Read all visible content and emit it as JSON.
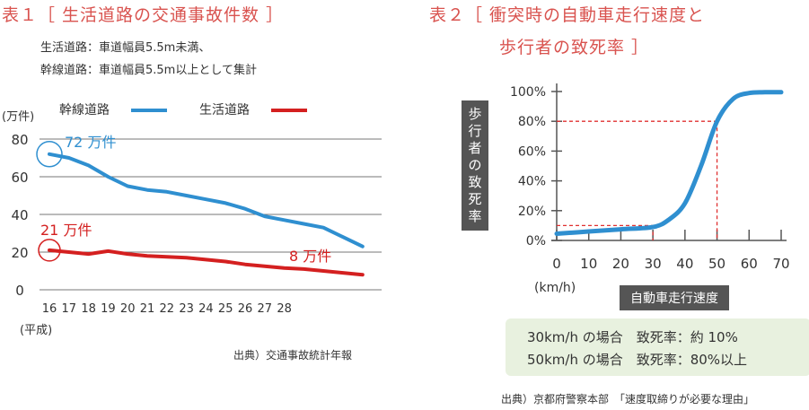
{
  "left": {
    "title": "表１［ 生活道路の交通事故件数 ］",
    "note1": "生活道路：車道幅員5.5m未満、",
    "note2": "幹線道路：車道幅員5.5m以上として集計",
    "unit": "(万件)",
    "era": "(平成)",
    "source": "出典）交通事故統計年報",
    "annotations": {
      "start_main": "72 万件",
      "start_life": "21 万件",
      "end_life": "8 万件"
    }
  },
  "right": {
    "title_line1": "表２［ 衝突時の自動車走行速度と",
    "title_line2": "歩行者の致死率 ］",
    "ylabel": "歩行者の致死率",
    "xunit": "(km/h)",
    "xlabel": "自動車走行速度",
    "summary": [
      "30km/h の場合　致死率：約 10%",
      "50km/h の場合　致死率：80%以上"
    ],
    "source": "出典）京都府警察本部　「速度取締りが必要な理由」"
  },
  "colors": {
    "blue": "#2f8fd0",
    "red": "#d42020",
    "title": "#d9534f",
    "dashed": "#e03030"
  },
  "chart_data": [
    {
      "type": "line",
      "title": "表１［ 生活道路の交通事故件数 ］",
      "xlabel": "(平成)",
      "ylabel": "(万件)",
      "ylim": [
        0,
        80
      ],
      "yticks": [
        "0",
        "20",
        "40",
        "60",
        "80"
      ],
      "xticks": [
        "16",
        "17",
        "18",
        "19",
        "20",
        "21",
        "22",
        "23",
        "24",
        "25",
        "26",
        "27",
        "28"
      ],
      "x": [
        16,
        17,
        18,
        19,
        20,
        21,
        22,
        23,
        24,
        25,
        26,
        27,
        28,
        29,
        30,
        31,
        32
      ],
      "legend": "top",
      "grid": true,
      "series": [
        {
          "name": "幹線道路",
          "color": "#2f8fd0",
          "values": [
            72,
            70,
            66,
            60,
            55,
            53,
            52,
            50,
            48,
            46,
            43,
            39,
            37,
            35,
            33,
            28,
            23
          ]
        },
        {
          "name": "生活道路",
          "color": "#d42020",
          "values": [
            21,
            20,
            19,
            20.5,
            19,
            18,
            17.5,
            17,
            16,
            15,
            13.5,
            12.5,
            11.5,
            11,
            10,
            9,
            8
          ]
        }
      ]
    },
    {
      "type": "line",
      "title": "表２［ 衝突時の自動車走行速度と 歩行者の致死率 ］",
      "xlabel": "自動車走行速度",
      "xunit": "(km/h)",
      "ylabel": "歩行者の致死率",
      "xlim": [
        0,
        70
      ],
      "ylim": [
        0,
        100
      ],
      "xticks": [
        "0",
        "10",
        "20",
        "30",
        "40",
        "50",
        "60",
        "70"
      ],
      "yticks": [
        "0%",
        "20%",
        "40%",
        "60%",
        "80%",
        "100%"
      ],
      "series": [
        {
          "color": "#2f8fd0",
          "x": [
            0,
            10,
            20,
            30,
            35,
            40,
            45,
            50,
            55,
            60,
            65,
            70
          ],
          "values": [
            4.5,
            6,
            7.5,
            9,
            14,
            25,
            50,
            80,
            95,
            99,
            99.5,
            99.5
          ]
        }
      ],
      "reference_points": [
        {
          "x": 30,
          "y": 10
        },
        {
          "x": 50,
          "y": 80
        }
      ]
    }
  ]
}
